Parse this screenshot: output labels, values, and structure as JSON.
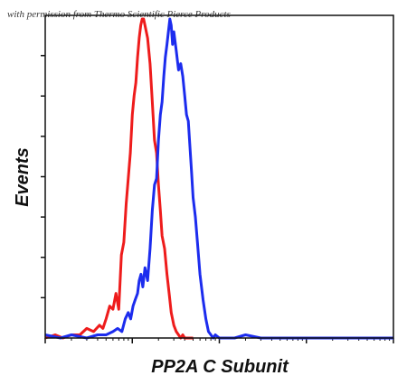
{
  "credit_text": "with permission from Thermo Scientific Pierce Products",
  "chart_data": {
    "type": "line",
    "title": "",
    "xlabel": "PP2A C Subunit",
    "ylabel": "Events",
    "x_scale": "log",
    "xlim": [
      1,
      10000
    ],
    "ylim": [
      0,
      100
    ],
    "grid": false,
    "legend": "none",
    "series": [
      {
        "color": "#ee1c1c",
        "x": [
          1.0,
          1.3,
          1.6,
          2.0,
          2.5,
          3.0,
          3.6,
          4.2,
          4.6,
          5.0,
          5.5,
          6.0,
          6.5,
          7.0,
          7.5,
          8.0,
          8.5,
          9.0,
          9.5,
          10.0,
          10.5,
          11.0,
          11.5,
          12.0,
          12.5,
          13.0,
          13.5,
          14.0,
          15.0,
          16.0,
          17.0,
          18.0,
          19.0,
          20.0,
          21.0,
          22.0,
          23.5,
          25.0,
          26.5,
          28.0,
          30.0,
          32.0,
          34.0,
          36.0,
          38.0,
          40.0,
          43.0,
          46.0,
          50.0
        ],
        "y": [
          0,
          1,
          0,
          1,
          1,
          3,
          2,
          4,
          3,
          6,
          10,
          9,
          14,
          9,
          26,
          30,
          42,
          50,
          58,
          70,
          76,
          80,
          88,
          94,
          98,
          100,
          100,
          98,
          94,
          86,
          74,
          62,
          58,
          48,
          40,
          32,
          28,
          20,
          14,
          8,
          4,
          2,
          1,
          0,
          1,
          0,
          0,
          0,
          0
        ]
      },
      {
        "color": "#1c2cee",
        "x": [
          1.0,
          1.5,
          2.0,
          3.0,
          4.0,
          5.0,
          6.0,
          6.8,
          7.6,
          8.3,
          9.0,
          9.6,
          10.2,
          10.8,
          11.5,
          12.0,
          12.6,
          13.2,
          14.0,
          15.0,
          16.0,
          17.0,
          18.0,
          19.0,
          20.0,
          21.0,
          22.0,
          23.0,
          24.0,
          25.0,
          26.0,
          27.0,
          28.0,
          29.0,
          30.0,
          32.0,
          34.0,
          36.0,
          38.0,
          40.0,
          42.0,
          44.0,
          46.0,
          48.0,
          50.0,
          53.0,
          56.0,
          60.0,
          65.0,
          70.0,
          75.0,
          80.0,
          85.0,
          90.0,
          100.0,
          150.0,
          200.0,
          300.0,
          500.0,
          1000.0,
          10000.0
        ],
        "y": [
          1,
          0,
          1,
          0,
          1,
          1,
          2,
          3,
          2,
          6,
          8,
          6,
          10,
          12,
          14,
          18,
          20,
          16,
          22,
          18,
          28,
          40,
          48,
          50,
          62,
          70,
          74,
          82,
          88,
          92,
          96,
          100,
          98,
          92,
          96,
          90,
          84,
          86,
          82,
          76,
          70,
          68,
          60,
          52,
          44,
          38,
          30,
          20,
          12,
          6,
          2,
          1,
          0,
          1,
          0,
          0,
          1,
          0,
          0,
          0,
          0
        ]
      }
    ]
  }
}
